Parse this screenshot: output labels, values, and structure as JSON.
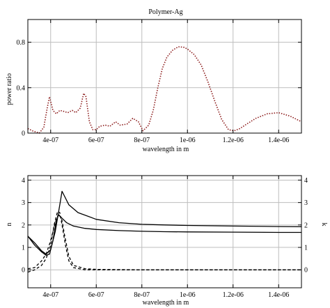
{
  "chart_data": [
    {
      "type": "line",
      "title": "Polymer-Ag",
      "xlabel": "wavelength in m",
      "ylabel": "power ratio",
      "xlim": [
        3e-07,
        1.5e-06
      ],
      "ylim": [
        0,
        1.0
      ],
      "xticks": [
        4e-07,
        6e-07,
        8e-07,
        1e-06,
        1.2e-06,
        1.4e-06
      ],
      "xtick_labels": [
        "4e-07",
        "6e-07",
        "8e-07",
        "1e-06",
        "1.2e-06",
        "1.4e-06"
      ],
      "yticks": [
        0,
        0.4,
        0.8
      ],
      "ytick_labels": [
        "0",
        "0.4",
        "0.8"
      ],
      "grid": true,
      "series": [
        {
          "color": "#8b1a1a",
          "style": "dotted",
          "x": [
            3e-07,
            3.2e-07,
            3.5e-07,
            3.7e-07,
            3.85e-07,
            3.95e-07,
            4.1e-07,
            4.25e-07,
            4.4e-07,
            4.6e-07,
            4.75e-07,
            4.95e-07,
            5.1e-07,
            5.3e-07,
            5.45e-07,
            5.55e-07,
            5.7e-07,
            5.85e-07,
            6e-07,
            6.15e-07,
            6.4e-07,
            6.6e-07,
            6.85e-07,
            7.05e-07,
            7.35e-07,
            7.6e-07,
            7.85e-07,
            8.05e-07,
            8.3e-07,
            8.5e-07,
            8.7e-07,
            8.9e-07,
            9.1e-07,
            9.35e-07,
            9.6e-07,
            9.85e-07,
            1e-06,
            1.03e-06,
            1.06e-06,
            1.09e-06,
            1.12e-06,
            1.15e-06,
            1.18e-06,
            1.205e-06,
            1.23e-06,
            1.26e-06,
            1.3e-06,
            1.35e-06,
            1.4e-06,
            1.45e-06,
            1.5e-06
          ],
          "y": [
            0.04,
            0.02,
            0.0,
            0.05,
            0.22,
            0.32,
            0.2,
            0.17,
            0.2,
            0.19,
            0.18,
            0.2,
            0.18,
            0.22,
            0.35,
            0.32,
            0.1,
            0.03,
            0.03,
            0.06,
            0.07,
            0.06,
            0.1,
            0.07,
            0.08,
            0.13,
            0.1,
            0.02,
            0.07,
            0.2,
            0.4,
            0.57,
            0.67,
            0.73,
            0.76,
            0.755,
            0.74,
            0.69,
            0.6,
            0.45,
            0.28,
            0.12,
            0.03,
            0.02,
            0.04,
            0.08,
            0.13,
            0.17,
            0.18,
            0.15,
            0.1
          ]
        }
      ]
    },
    {
      "type": "line",
      "xlabel": "wavelength in m",
      "ylabel": "n",
      "y2label": "k",
      "xlim": [
        3e-07,
        1.5e-06
      ],
      "ylim": [
        -0.8,
        4.2
      ],
      "xticks": [
        4e-07,
        6e-07,
        8e-07,
        1e-06,
        1.2e-06,
        1.4e-06
      ],
      "xtick_labels": [
        "4e-07",
        "6e-07",
        "8e-07",
        "1e-06",
        "1.2e-06",
        "1.4e-06"
      ],
      "yticks": [
        0,
        1,
        2,
        3,
        4
      ],
      "ytick_labels": [
        "0",
        "1",
        "2",
        "3",
        "4"
      ],
      "y2ticks": [
        0,
        1,
        2,
        3,
        4
      ],
      "y2tick_labels": [
        "0",
        "1",
        "2",
        "3",
        "4"
      ],
      "grid": true,
      "series": [
        {
          "color": "#000000",
          "style": "solid",
          "x": [
            3e-07,
            3.3e-07,
            3.6e-07,
            3.8e-07,
            4e-07,
            4.2e-07,
            4.4e-07,
            4.5e-07,
            4.6e-07,
            4.8e-07,
            5.2e-07,
            6e-07,
            7e-07,
            8e-07,
            9e-07,
            1e-06,
            1.2e-06,
            1.4e-06,
            1.5e-06
          ],
          "y": [
            1.5,
            1.2,
            0.85,
            0.7,
            0.9,
            1.7,
            2.9,
            3.5,
            3.3,
            2.9,
            2.55,
            2.25,
            2.1,
            2.03,
            2.0,
            1.98,
            1.95,
            1.93,
            1.92
          ]
        },
        {
          "color": "#000000",
          "style": "solid",
          "x": [
            3e-07,
            3.3e-07,
            3.6e-07,
            3.8e-07,
            3.95e-07,
            4.1e-07,
            4.25e-07,
            4.35e-07,
            4.5e-07,
            4.7e-07,
            5e-07,
            5.5e-07,
            6e-07,
            7e-07,
            8e-07,
            9e-07,
            1e-06,
            1.2e-06,
            1.4e-06,
            1.5e-06
          ],
          "y": [
            1.5,
            1.1,
            0.8,
            0.65,
            0.7,
            1.3,
            2.2,
            2.45,
            2.3,
            2.1,
            1.95,
            1.85,
            1.8,
            1.75,
            1.72,
            1.7,
            1.69,
            1.68,
            1.67,
            1.67
          ]
        },
        {
          "color": "#000000",
          "style": "dashed",
          "x": [
            3e-07,
            3.3e-07,
            3.6e-07,
            3.8e-07,
            4e-07,
            4.15e-07,
            4.3e-07,
            4.4e-07,
            4.5e-07,
            4.65e-07,
            4.8e-07,
            5e-07,
            5.5e-07,
            6e-07,
            8e-07,
            1e-06,
            1.2e-06,
            1.4e-06,
            1.5e-06
          ],
          "y": [
            -0.1,
            0.0,
            0.2,
            0.5,
            1.1,
            2.0,
            2.6,
            2.55,
            2.0,
            1.1,
            0.4,
            0.1,
            0.0,
            0.0,
            0.0,
            0.0,
            0.0,
            0.0,
            0.0
          ]
        },
        {
          "color": "#000000",
          "style": "dashed",
          "x": [
            3e-07,
            3.3e-07,
            3.6e-07,
            3.8e-07,
            4e-07,
            4.2e-07,
            4.35e-07,
            4.5e-07,
            4.6e-07,
            4.8e-07,
            5e-07,
            5.5e-07,
            6e-07,
            8e-07,
            1e-06,
            1.2e-06,
            1.4e-06,
            1.5e-06
          ],
          "y": [
            0.05,
            0.1,
            0.4,
            0.7,
            1.3,
            2.1,
            2.5,
            2.2,
            1.6,
            0.6,
            0.2,
            0.05,
            0.02,
            0.0,
            0.0,
            0.0,
            0.0,
            0.0
          ]
        }
      ]
    }
  ]
}
